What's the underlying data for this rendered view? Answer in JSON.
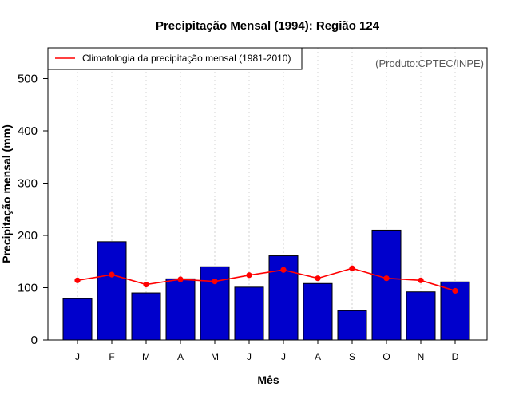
{
  "chart_data": {
    "type": "bar",
    "title": "Precipitação Mensal (1994): Região 124",
    "xlabel": "Mês",
    "ylabel": "Precipitação mensal (mm)",
    "credit": "(Produto:CPTEC/INPE)",
    "ylim": [
      0,
      560
    ],
    "yticks": [
      "0",
      "100",
      "200",
      "300",
      "400",
      "500"
    ],
    "ytick_values": [
      0,
      100,
      200,
      300,
      400,
      500
    ],
    "categories": [
      "J",
      "F",
      "M",
      "A",
      "M",
      "J",
      "J",
      "A",
      "S",
      "O",
      "N",
      "D"
    ],
    "series": [
      {
        "name": "Precipitação mensal (1994)",
        "type": "bar",
        "color": "#0000CC",
        "values": [
          79,
          188,
          90,
          117,
          140,
          101,
          161,
          108,
          56,
          210,
          92,
          111
        ]
      },
      {
        "name": "Climatologia da precipitação mensal (1981-2010)",
        "type": "line",
        "color": "#FF0000",
        "values": [
          114,
          125,
          106,
          116,
          112,
          124,
          134,
          118,
          137,
          118,
          114,
          94
        ]
      }
    ],
    "legend": {
      "position": "top-left",
      "label": "Climatologia da precipitação mensal (1981-2010)"
    },
    "grid": "vertical dotted"
  }
}
